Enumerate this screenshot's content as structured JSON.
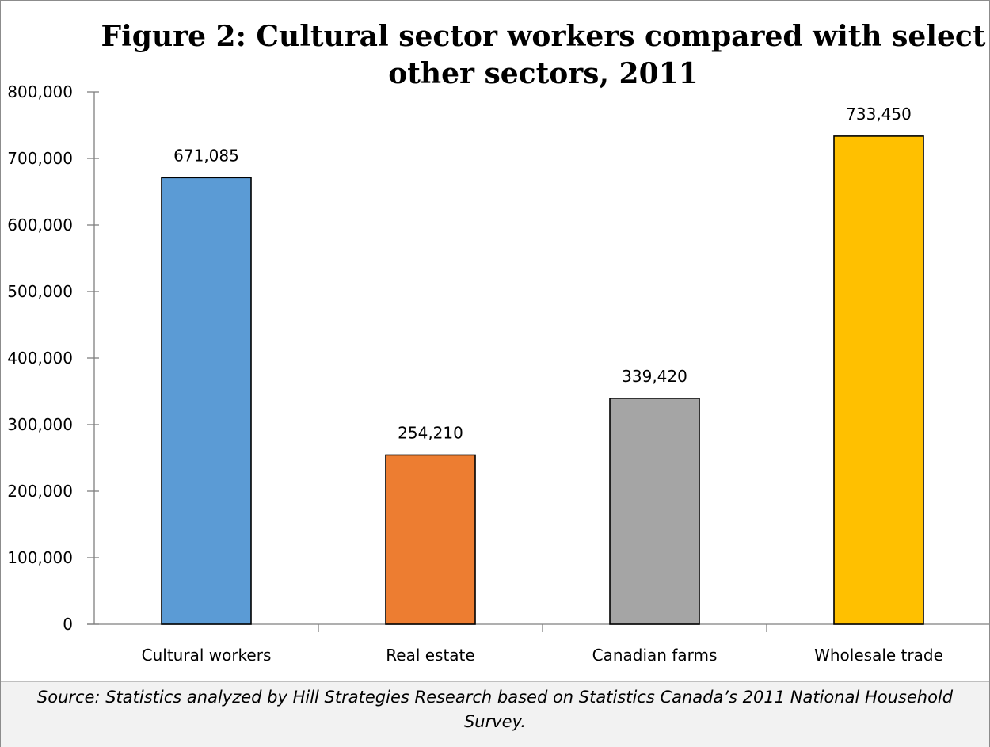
{
  "chart_data": {
    "type": "bar",
    "title": "Figure 2: Cultural sector workers compared with select other sectors, 2011",
    "categories": [
      "Cultural workers",
      "Real estate",
      "Canadian farms",
      "Wholesale trade"
    ],
    "values": [
      671085,
      254210,
      339420,
      733450
    ],
    "value_labels": [
      "671,085",
      "254,210",
      "339,420",
      "733,450"
    ],
    "colors": [
      "#5b9bd5",
      "#ed7d31",
      "#a5a5a5",
      "#ffc000"
    ],
    "ylim": [
      0,
      800000
    ],
    "yticks": [
      0,
      100000,
      200000,
      300000,
      400000,
      500000,
      600000,
      700000,
      800000
    ],
    "ytick_labels": [
      "0",
      "100,000",
      "200,000",
      "300,000",
      "400,000",
      "500,000",
      "600,000",
      "700,000",
      "800,000"
    ],
    "xlabel": "",
    "ylabel": "",
    "grid": false,
    "legend": "none"
  },
  "source_note": "Source: Statistics analyzed by Hill Strategies Research based on Statistics Canada’s 2011 National Household Survey."
}
